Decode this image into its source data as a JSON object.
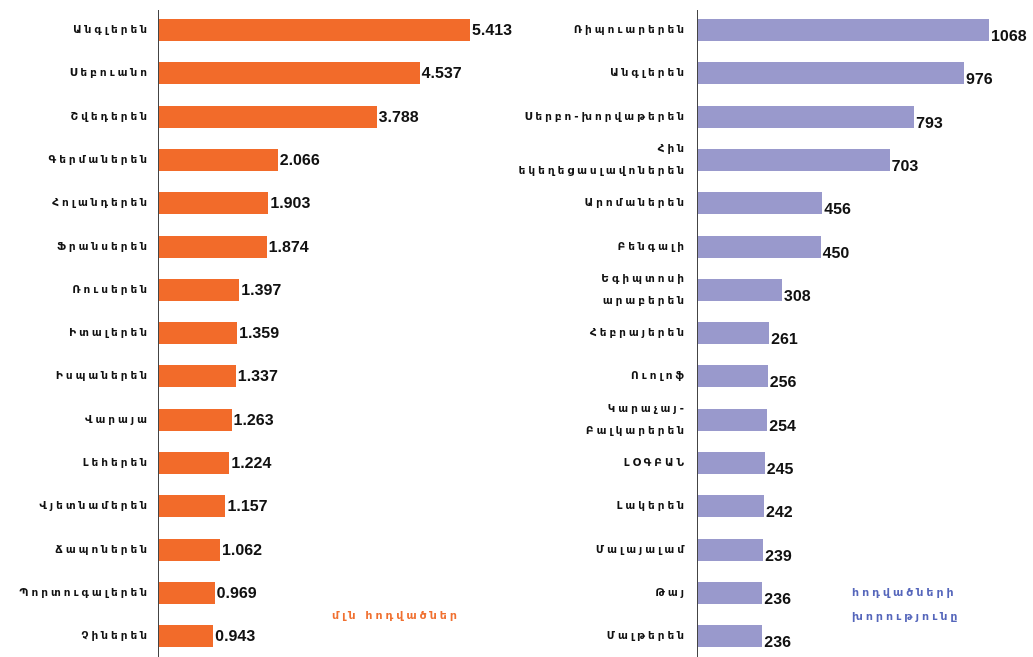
{
  "chart_data": [
    {
      "type": "barh",
      "categories": [
        "Անգլերեն",
        "Սեբուանո",
        "Շվեդերեն",
        "Գերմաներեն",
        "Հոլանդերեն",
        "Ֆրանսերեն",
        "Ռուսերեն",
        "Իտալերեն",
        "Իսպաներեն",
        "Վարայա",
        "Լեհերեն",
        "Վյետնամերեն",
        "Ճապոներեն",
        "Պորտուգալերեն",
        "Չիներեն"
      ],
      "values": [
        5.413,
        4.537,
        3.788,
        2.066,
        1.903,
        1.874,
        1.397,
        1.359,
        1.337,
        1.263,
        1.224,
        1.157,
        1.062,
        0.969,
        0.943
      ],
      "color": "#f26b2a",
      "annotation": "մլն հոդվածներ",
      "annotation_color": "#f07030"
    },
    {
      "type": "barh",
      "categories": [
        "Ռիպուարերեն",
        "Անգլերեն",
        "Սերբո-խորվաթերեն",
        "Հին\nեկեղեցասլավոներեն",
        "Արոմաներեն",
        "Բենգալի",
        "Եգիպտոսի\nարաբերեն",
        "Հեբրայերեն",
        "Ուոլոֆ",
        "Կարաչայ-\nԲալկարերեն",
        "ԼՕԳԲԱՆ",
        "Լակերեն",
        "Մալայալամ",
        "Թայ",
        "Մալթերեն"
      ],
      "values": [
        1068,
        976,
        793,
        703,
        456,
        450,
        308,
        261,
        256,
        254,
        245,
        242,
        239,
        236,
        236
      ],
      "color": "#9999cc",
      "annotation": "հոդվածների\nխորությունը",
      "annotation_color": "#5566bb"
    }
  ]
}
